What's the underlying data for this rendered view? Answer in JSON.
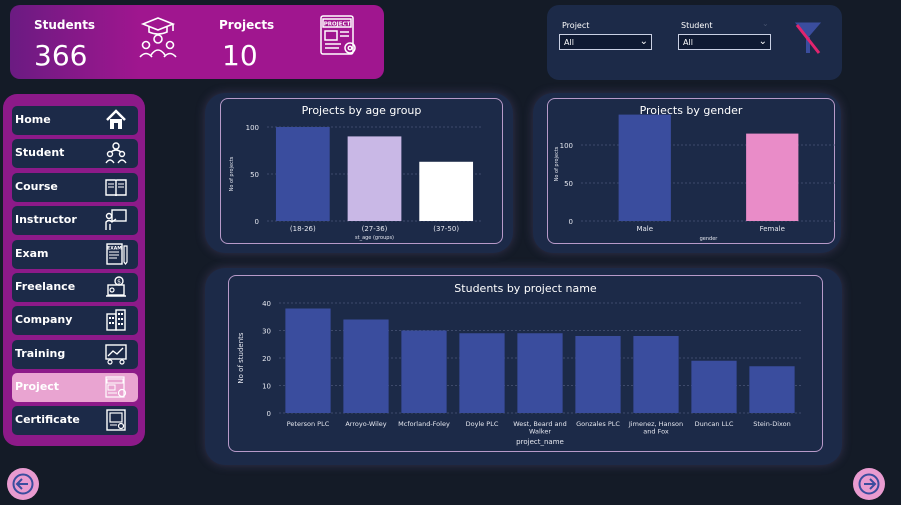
{
  "kpis": {
    "students_label": "Students",
    "students_value": "366",
    "projects_label": "Projects",
    "projects_value": "10",
    "project_icon_text": "PROJECT"
  },
  "filters": {
    "project_label": "Project",
    "project_value": "All",
    "student_label": "Student",
    "student_value": "All"
  },
  "nav": {
    "items": [
      {
        "label": "Home",
        "icon": "home-icon"
      },
      {
        "label": "Student",
        "icon": "students-icon"
      },
      {
        "label": "Course",
        "icon": "course-icon"
      },
      {
        "label": "Instructor",
        "icon": "instructor-icon"
      },
      {
        "label": "Exam",
        "icon": "exam-icon"
      },
      {
        "label": "Freelance",
        "icon": "freelance-icon"
      },
      {
        "label": "Company",
        "icon": "company-icon"
      },
      {
        "label": "Training",
        "icon": "training-icon"
      },
      {
        "label": "Project",
        "icon": "project-icon"
      },
      {
        "label": "Certificate",
        "icon": "certificate-icon"
      }
    ],
    "active": "Project",
    "exam_icon_text": "EXAM"
  },
  "colors": {
    "accent": "#a0168f",
    "panel": "#1c2a48",
    "bar_blue": "#3a4d9e",
    "bar_lavender": "#c9b8e6",
    "bar_white": "#ffffff",
    "bar_pink": "#e98cc8",
    "arrow": "#e99bd0"
  },
  "chart_data": [
    {
      "type": "bar",
      "title": "Projects by age group",
      "xlabel": "st_age (groups)",
      "ylabel": "No of projects",
      "categories": [
        "(18-26)",
        "(27-36)",
        "(37-50)"
      ],
      "values": [
        100,
        90,
        63
      ],
      "ylim": [
        0,
        100
      ],
      "yticks": [
        0,
        50,
        100
      ],
      "colors": [
        "#3a4d9e",
        "#c9b8e6",
        "#ffffff"
      ],
      "grid": true
    },
    {
      "type": "bar",
      "title": "Projects by gender",
      "xlabel": "gender",
      "ylabel": "No of projects",
      "categories": [
        "Male",
        "Female"
      ],
      "values": [
        140,
        115
      ],
      "ylim": [
        0,
        150
      ],
      "yticks": [
        0,
        50,
        100
      ],
      "colors": [
        "#3a4d9e",
        "#e98cc8"
      ],
      "grid": true
    },
    {
      "type": "bar",
      "title": "Students by project name",
      "xlabel": "project_name",
      "ylabel": "No of students",
      "categories": [
        "Peterson PLC",
        "Arroyo-Wiley",
        "Mcforland-Foley",
        "Doyle PLC",
        "West, Beard and Walker",
        "Gonzales PLC",
        "Jimenez, Hanson and Fox",
        "Duncan LLC",
        "Stein-Dixon"
      ],
      "values": [
        38,
        34,
        30,
        29,
        29,
        28,
        28,
        19,
        17
      ],
      "ylim": [
        0,
        40
      ],
      "yticks": [
        0,
        10,
        20,
        30,
        40
      ],
      "colors": [
        "#3a4d9e"
      ],
      "grid": true
    }
  ]
}
